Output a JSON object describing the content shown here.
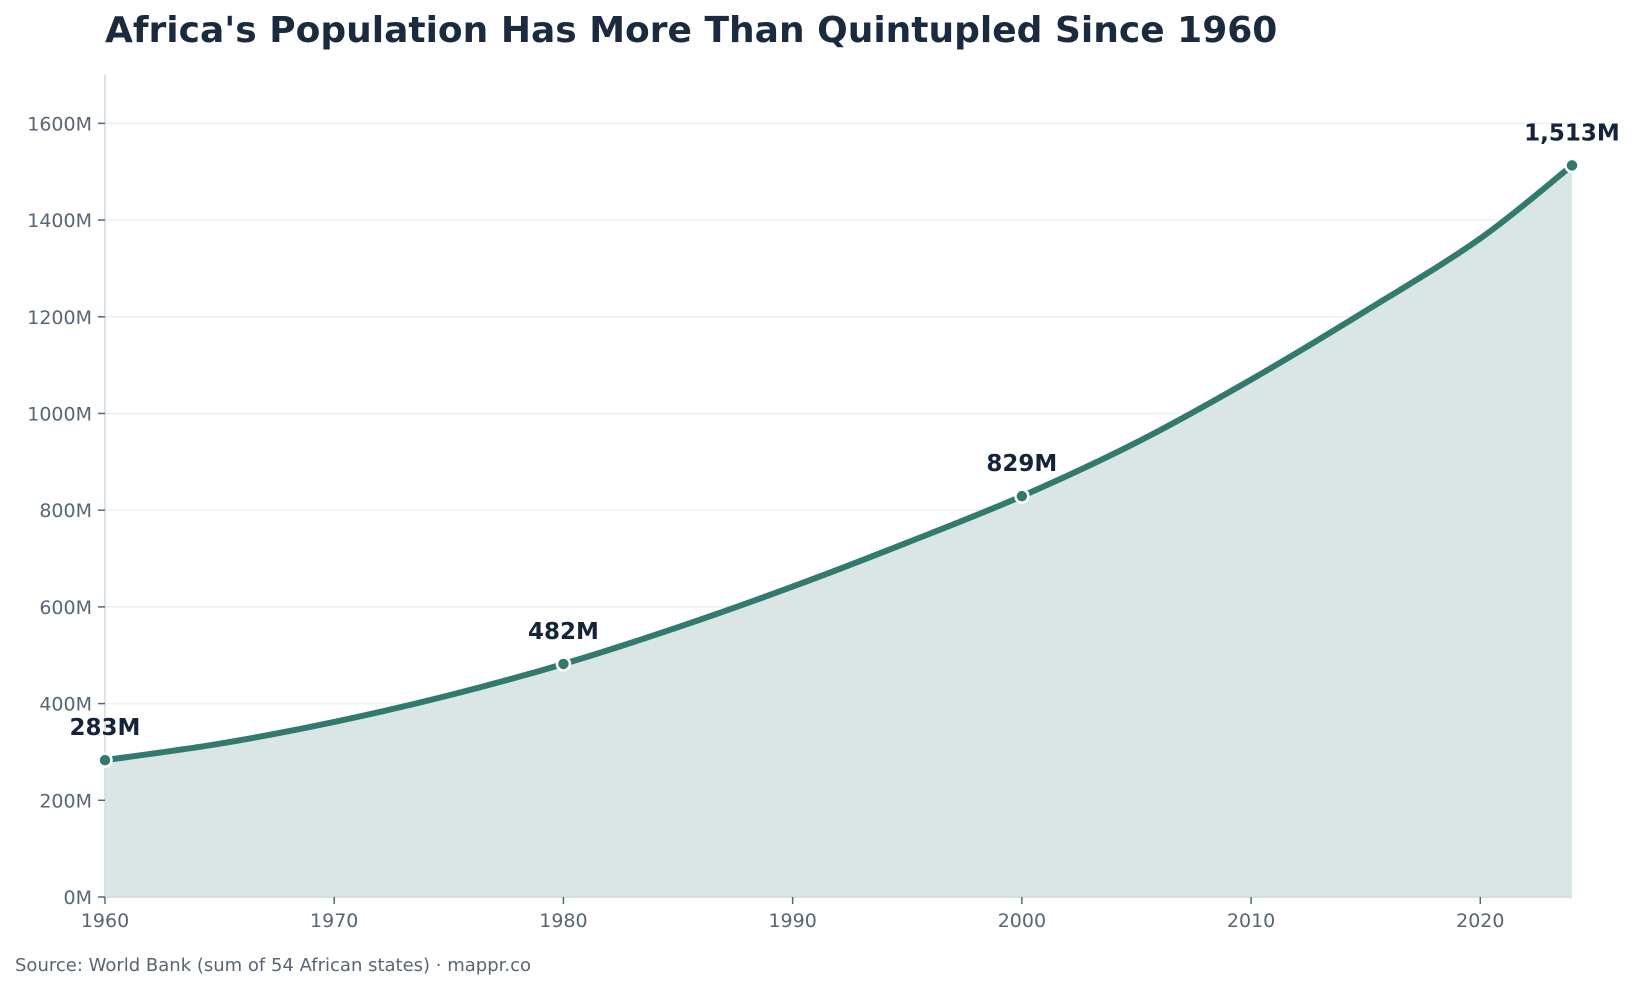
{
  "chart_data": {
    "type": "area",
    "title": "Africa's Population Has More Than Quintupled Since 1960",
    "xlabel": "",
    "ylabel": "",
    "x_range": [
      1960,
      2024
    ],
    "ylim": [
      0,
      1700
    ],
    "x_ticks": [
      1960,
      1970,
      1980,
      1990,
      2000,
      2010,
      2020
    ],
    "x_tick_labels": [
      "1960",
      "1970",
      "1980",
      "1990",
      "2000",
      "2010",
      "2020"
    ],
    "y_ticks": [
      0,
      200,
      400,
      600,
      800,
      1000,
      1200,
      1400,
      1600
    ],
    "y_tick_labels": [
      "0M",
      "200M",
      "400M",
      "600M",
      "800M",
      "1000M",
      "1200M",
      "1400M",
      "1600M"
    ],
    "grid": "horizontal",
    "unit": "millions",
    "series": [
      {
        "values": [
          {
            "x": 1960,
            "y": 283
          },
          {
            "x": 1965,
            "y": 317
          },
          {
            "x": 1970,
            "y": 362
          },
          {
            "x": 1975,
            "y": 417
          },
          {
            "x": 1980,
            "y": 482
          },
          {
            "x": 1985,
            "y": 558
          },
          {
            "x": 1990,
            "y": 642
          },
          {
            "x": 1995,
            "y": 733
          },
          {
            "x": 2000,
            "y": 829
          },
          {
            "x": 2005,
            "y": 940
          },
          {
            "x": 2010,
            "y": 1070
          },
          {
            "x": 2015,
            "y": 1212
          },
          {
            "x": 2020,
            "y": 1362
          },
          {
            "x": 2024,
            "y": 1513
          }
        ]
      }
    ],
    "annotations": [
      {
        "x": 1960,
        "y": 283,
        "label": "283M"
      },
      {
        "x": 1980,
        "y": 482,
        "label": "482M"
      },
      {
        "x": 2000,
        "y": 829,
        "label": "829M"
      },
      {
        "x": 2024,
        "y": 1513,
        "label": "1,513M"
      }
    ],
    "colors": {
      "line": "#327a6d",
      "fill": "#dae6e5",
      "title": "#1a2a3f",
      "axis_text": "#576675",
      "grid": "#ecf1f1",
      "axis_line": "#cfdcdc",
      "label": "#14253a"
    }
  },
  "source": "Source: World Bank (sum of 54 African states) · mappr.co"
}
